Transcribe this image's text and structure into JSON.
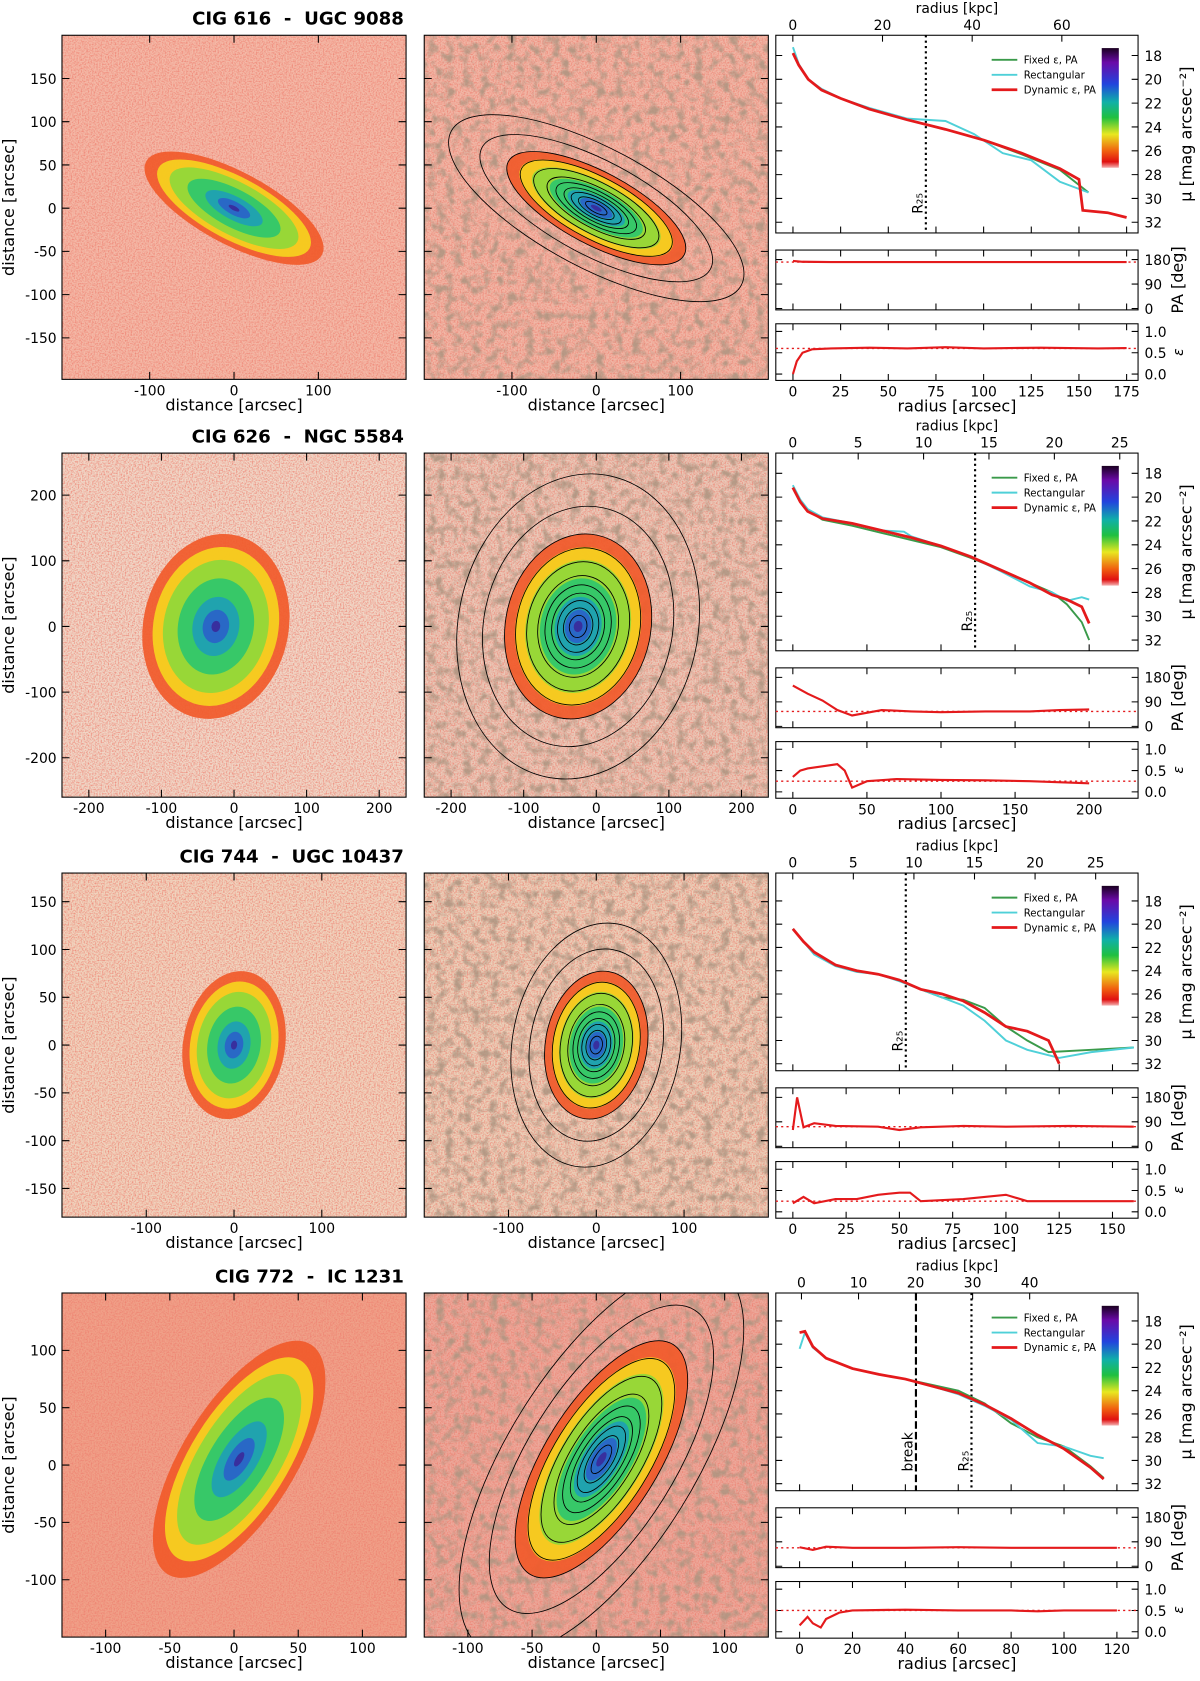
{
  "labels": {
    "distance": "distance [arcsec]",
    "radius_arcsec": "radius [arcsec]",
    "radius_kpc": "radius [kpc]",
    "mu": "μ [mag arcsec⁻²]",
    "pa": "PA [deg]",
    "eps": "ε"
  },
  "panels": [
    {
      "title": "CIG 616  -  UGC 9088",
      "image": {
        "xlim": [
          -204,
          204
        ],
        "ylim": [
          -198,
          200
        ],
        "xticks": [
          -100,
          0,
          100
        ],
        "yticks": [
          -150,
          -100,
          -50,
          0,
          50,
          100,
          150
        ]
      },
      "profile": {
        "xlim": [
          -9,
          181
        ],
        "xticks": [
          0,
          25,
          50,
          75,
          100,
          125,
          150,
          175
        ],
        "kpc_lim": [
          -3.8,
          77
        ],
        "kpc_ticks": [
          0,
          20,
          40,
          60
        ],
        "mu_lim": [
          32.9,
          16.3
        ],
        "mu_ticks": [
          18,
          20,
          22,
          24,
          26,
          28,
          30,
          32
        ],
        "markers": [
          {
            "label": "R₂₅",
            "x": 69.7,
            "style": "dotted"
          }
        ],
        "series": [
          {
            "name": "Fixed ε, PA",
            "color": "#3a9a4a",
            "x": [
              0,
              3,
              8,
              15,
              25,
              40,
              60,
              80,
              100,
              120,
              140,
              155
            ],
            "values": [
              17.8,
              18.8,
              20.0,
              20.9,
              21.6,
              22.5,
              23.4,
              24.2,
              25.1,
              26.3,
              27.6,
              29.5
            ]
          },
          {
            "name": "Rectangular",
            "color": "#4fd0d8",
            "x": [
              0,
              3,
              8,
              15,
              25,
              40,
              60,
              80,
              95,
              110,
              125,
              140,
              155
            ],
            "values": [
              17.3,
              18.7,
              20.0,
              20.8,
              21.6,
              22.4,
              23.3,
              23.5,
              24.6,
              26.2,
              26.8,
              28.6,
              29.5
            ]
          },
          {
            "name": "Dynamic ε, PA",
            "color": "#e41a1c",
            "x": [
              0,
              3,
              8,
              15,
              25,
              40,
              60,
              80,
              100,
              120,
              140,
              150,
              152,
              165,
              175
            ],
            "values": [
              17.8,
              18.8,
              20.0,
              20.9,
              21.6,
              22.5,
              23.4,
              24.2,
              25.1,
              26.2,
              27.5,
              28.4,
              31.0,
              31.2,
              31.6
            ]
          }
        ],
        "pa_lim": [
          -5,
          215
        ],
        "pa_ticks": [
          0,
          90,
          180
        ],
        "pa_fixed": 171,
        "pa": {
          "x": [
            0,
            5,
            20,
            50,
            100,
            150,
            175
          ],
          "values": [
            175,
            172,
            171,
            171,
            171,
            171,
            171
          ]
        },
        "eps_lim": [
          -0.15,
          1.18
        ],
        "eps_ticks": [
          {
            "value": 0,
            "label": "0.0"
          },
          0.5,
          {
            "value": 1,
            "label": "1.0"
          }
        ],
        "eps_fixed": 0.6,
        "eps": {
          "x": [
            0,
            2,
            5,
            10,
            20,
            40,
            60,
            80,
            100,
            130,
            160,
            175
          ],
          "values": [
            0,
            0.3,
            0.5,
            0.58,
            0.6,
            0.62,
            0.6,
            0.63,
            0.6,
            0.62,
            0.6,
            0.61
          ]
        }
      }
    },
    {
      "title": "CIG 626  -  NGC 5584",
      "image": {
        "xlim": [
          -237,
          237
        ],
        "ylim": [
          -260,
          264
        ],
        "xticks": [
          -200,
          -100,
          0,
          100,
          200
        ],
        "yticks": [
          -200,
          -100,
          0,
          100,
          200
        ]
      },
      "profile": {
        "xlim": [
          -11.5,
          233
        ],
        "xticks": [
          0,
          50,
          100,
          150,
          200
        ],
        "kpc_lim": [
          -1.3,
          26.4
        ],
        "kpc_ticks": [
          0,
          5,
          10,
          15,
          20,
          25
        ],
        "mu_lim": [
          32.9,
          16.3
        ],
        "mu_ticks": [
          18,
          20,
          22,
          24,
          26,
          28,
          30,
          32
        ],
        "markers": [
          {
            "label": "R₂₅",
            "x": 123,
            "style": "dotted"
          }
        ],
        "series": [
          {
            "name": "Fixed ε, PA",
            "color": "#3a9a4a",
            "x": [
              0,
              5,
              10,
              20,
              40,
              60,
              80,
              100,
              120,
              140,
              160,
              175,
              185,
              195,
              200
            ],
            "values": [
              19.2,
              20.3,
              21.1,
              21.9,
              22.4,
              23.0,
              23.6,
              24.2,
              25.1,
              26.1,
              27.2,
              28.0,
              29.0,
              30.5,
              32.0
            ]
          },
          {
            "name": "Rectangular",
            "color": "#4fd0d8",
            "x": [
              0,
              5,
              10,
              20,
              40,
              60,
              75,
              80,
              100,
              120,
              140,
              160,
              175,
              185,
              195,
              200
            ],
            "values": [
              19.0,
              20.2,
              21.0,
              21.7,
              22.2,
              22.8,
              22.9,
              23.3,
              24.1,
              25.0,
              26.2,
              27.5,
              28.0,
              28.7,
              28.4,
              28.6
            ]
          },
          {
            "name": "Dynamic ε, PA",
            "color": "#e41a1c",
            "x": [
              0,
              5,
              10,
              20,
              40,
              60,
              80,
              100,
              120,
              140,
              160,
              175,
              185,
              195,
              200
            ],
            "values": [
              19.2,
              20.4,
              21.2,
              21.8,
              22.2,
              22.8,
              23.4,
              24.1,
              25.0,
              26.1,
              27.2,
              28.2,
              28.6,
              29.2,
              30.6
            ]
          }
        ],
        "pa_lim": [
          -5,
          215
        ],
        "pa_ticks": [
          0,
          90,
          180
        ],
        "pa_fixed": 55,
        "pa": {
          "x": [
            0,
            10,
            20,
            30,
            40,
            60,
            80,
            100,
            130,
            160,
            180,
            200
          ],
          "values": [
            150,
            120,
            95,
            60,
            40,
            60,
            55,
            52,
            55,
            55,
            60,
            62
          ]
        },
        "eps_lim": [
          -0.15,
          1.18
        ],
        "eps_ticks": [
          {
            "value": 0,
            "label": "0.0"
          },
          0.5,
          {
            "value": 1,
            "label": "1.0"
          }
        ],
        "eps_fixed": 0.25,
        "eps": {
          "x": [
            0,
            5,
            10,
            20,
            30,
            35,
            40,
            50,
            70,
            100,
            130,
            160,
            200
          ],
          "values": [
            0.35,
            0.5,
            0.55,
            0.6,
            0.65,
            0.5,
            0.1,
            0.25,
            0.3,
            0.28,
            0.27,
            0.25,
            0.2
          ]
        }
      }
    },
    {
      "title": "CIG 744  -  UGC 10437",
      "image": {
        "xlim": [
          -196,
          196
        ],
        "ylim": [
          -180,
          180
        ],
        "xticks": [
          -100,
          0,
          100
        ],
        "yticks": [
          -150,
          -100,
          -50,
          0,
          50,
          100,
          150
        ]
      },
      "profile": {
        "xlim": [
          -8,
          162
        ],
        "xticks": [
          0,
          25,
          50,
          75,
          100,
          125,
          150
        ],
        "kpc_lim": [
          -1.4,
          28.5
        ],
        "kpc_ticks": [
          0,
          5,
          10,
          15,
          20,
          25
        ],
        "mu_lim": [
          32.6,
          15.6
        ],
        "mu_ticks": [
          18,
          20,
          22,
          24,
          26,
          28,
          30,
          32
        ],
        "markers": [
          {
            "label": "R₂₅",
            "x": 53,
            "style": "dotted"
          }
        ],
        "series": [
          {
            "name": "Fixed ε, PA",
            "color": "#3a9a4a",
            "x": [
              0,
              5,
              10,
              20,
              30,
              40,
              50,
              60,
              70,
              80,
              90,
              100,
              110,
              120,
              140,
              160
            ],
            "values": [
              20.4,
              21.5,
              22.5,
              23.5,
              24.0,
              24.3,
              24.8,
              25.6,
              26.3,
              26.5,
              27.2,
              28.8,
              30.0,
              31.0,
              30.8,
              30.6
            ]
          },
          {
            "name": "Rectangular",
            "color": "#4fd0d8",
            "x": [
              0,
              5,
              10,
              20,
              30,
              40,
              50,
              60,
              70,
              80,
              90,
              100,
              110,
              125,
              140,
              160
            ],
            "values": [
              20.4,
              21.5,
              22.6,
              23.6,
              24.1,
              24.3,
              24.9,
              25.6,
              26.3,
              27.0,
              28.3,
              30.0,
              30.8,
              31.5,
              31.0,
              30.6
            ]
          },
          {
            "name": "Dynamic ε, PA",
            "color": "#e41a1c",
            "x": [
              0,
              5,
              10,
              20,
              30,
              40,
              50,
              60,
              70,
              80,
              90,
              100,
              110,
              120,
              125
            ],
            "values": [
              20.4,
              21.5,
              22.4,
              23.5,
              24.0,
              24.3,
              24.8,
              25.6,
              26.0,
              26.6,
              27.6,
              28.8,
              29.2,
              30.0,
              32.0
            ]
          }
        ],
        "pa_lim": [
          -5,
          215
        ],
        "pa_ticks": [
          0,
          90,
          180
        ],
        "pa_fixed": 72,
        "pa": {
          "x": [
            0,
            2,
            5,
            10,
            20,
            40,
            50,
            60,
            80,
            100,
            130,
            160
          ],
          "values": [
            60,
            180,
            70,
            85,
            75,
            72,
            60,
            70,
            75,
            72,
            75,
            72
          ]
        },
        "eps_lim": [
          -0.15,
          1.18
        ],
        "eps_ticks": [
          {
            "value": 0,
            "label": "0.0"
          },
          0.5,
          {
            "value": 1,
            "label": "1.0"
          }
        ],
        "eps_fixed": 0.25,
        "eps": {
          "x": [
            0,
            5,
            10,
            20,
            30,
            40,
            50,
            55,
            60,
            80,
            100,
            110,
            130,
            160
          ],
          "values": [
            0.2,
            0.35,
            0.2,
            0.3,
            0.3,
            0.4,
            0.45,
            0.45,
            0.25,
            0.3,
            0.4,
            0.25,
            0.25,
            0.25
          ]
        }
      }
    },
    {
      "title": "CIG 772  -  IC 1231",
      "image": {
        "xlim": [
          -134,
          134
        ],
        "ylim": [
          -150,
          150
        ],
        "xticks": [
          -100,
          -50,
          0,
          50,
          100
        ],
        "yticks": [
          -100,
          -50,
          0,
          50,
          100
        ]
      },
      "profile": {
        "xlim": [
          -9,
          128
        ],
        "xticks": [
          0,
          20,
          40,
          60,
          80,
          100,
          120
        ],
        "kpc_lim": [
          -4.5,
          59
        ],
        "kpc_ticks": [
          0,
          10,
          20,
          30,
          40
        ],
        "mu_lim": [
          32.6,
          15.6
        ],
        "mu_ticks": [
          18,
          20,
          22,
          24,
          26,
          28,
          30,
          32
        ],
        "markers": [
          {
            "label": "break",
            "x": 44,
            "style": "dashed"
          },
          {
            "label": "R₂₅",
            "x": 65,
            "style": "dotted"
          }
        ],
        "series": [
          {
            "name": "Fixed ε, PA",
            "color": "#3a9a4a",
            "x": [
              0,
              2,
              5,
              10,
              20,
              30,
              40,
              50,
              60,
              70,
              80,
              90,
              100,
              110,
              115
            ],
            "values": [
              19.0,
              18.9,
              20.2,
              21.2,
              22.1,
              22.6,
              23.0,
              23.5,
              24.0,
              25.1,
              26.8,
              28.0,
              28.8,
              30.5,
              31.5
            ]
          },
          {
            "name": "Rectangular",
            "color": "#4fd0d8",
            "x": [
              0,
              2,
              5,
              10,
              20,
              30,
              40,
              50,
              60,
              70,
              80,
              90,
              100,
              110,
              115
            ],
            "values": [
              20.4,
              19.0,
              20.3,
              21.2,
              22.1,
              22.6,
              23.0,
              23.6,
              24.3,
              25.3,
              26.5,
              28.5,
              28.8,
              29.6,
              29.8
            ]
          },
          {
            "name": "Dynamic ε, PA",
            "color": "#e41a1c",
            "x": [
              0,
              2,
              5,
              10,
              20,
              30,
              40,
              50,
              60,
              70,
              80,
              90,
              100,
              110,
              115
            ],
            "values": [
              19.0,
              18.9,
              20.2,
              21.2,
              22.1,
              22.6,
              23.0,
              23.6,
              24.2,
              25.2,
              26.4,
              27.8,
              29.0,
              30.6,
              31.6
            ]
          }
        ],
        "pa_lim": [
          -5,
          215
        ],
        "pa_ticks": [
          0,
          90,
          180
        ],
        "pa_fixed": 68,
        "pa": {
          "x": [
            0,
            5,
            10,
            20,
            40,
            60,
            80,
            100,
            120
          ],
          "values": [
            70,
            60,
            72,
            68,
            68,
            70,
            68,
            68,
            68
          ]
        },
        "eps_lim": [
          -0.15,
          1.18
        ],
        "eps_ticks": [
          {
            "value": 0,
            "label": "0.0"
          },
          0.5,
          {
            "value": 1,
            "label": "1.0"
          }
        ],
        "eps_fixed": 0.5,
        "eps": {
          "x": [
            0,
            3,
            5,
            8,
            10,
            15,
            20,
            40,
            60,
            80,
            90,
            100,
            120
          ],
          "values": [
            0.15,
            0.35,
            0.2,
            0.1,
            0.3,
            0.45,
            0.5,
            0.52,
            0.5,
            0.5,
            0.48,
            0.5,
            0.5
          ]
        }
      }
    }
  ]
}
